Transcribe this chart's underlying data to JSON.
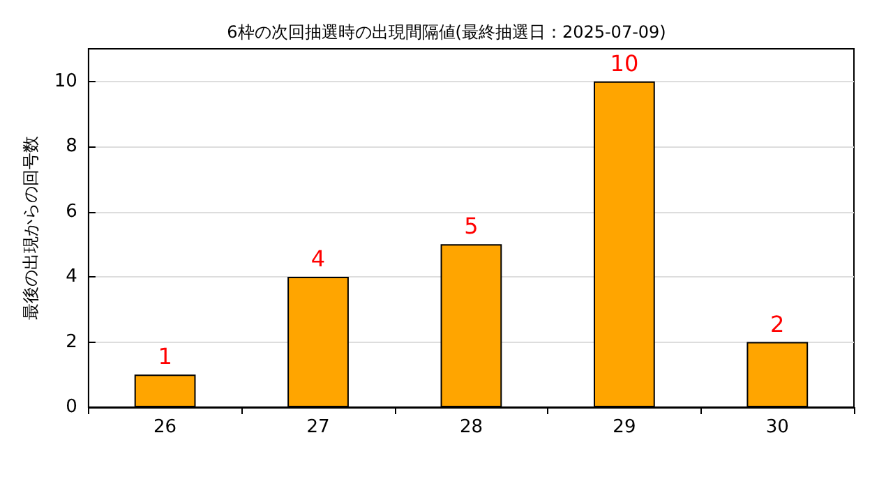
{
  "chart_data": {
    "type": "bar",
    "title": "6枠の次回抽選時の出現間隔値(最終抽選日：2025-07-09)",
    "ylabel": "最後の出現からの回号数",
    "categories": [
      "26",
      "27",
      "28",
      "29",
      "30"
    ],
    "values": [
      1,
      4,
      5,
      10,
      2
    ],
    "color": "#ffa500",
    "ylim": [
      0,
      11
    ],
    "yticks": [
      0,
      2,
      4,
      6,
      8,
      10
    ],
    "grid": "y",
    "data_labels": true
  }
}
